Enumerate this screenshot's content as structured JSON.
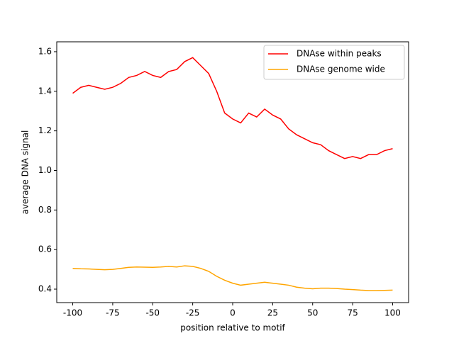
{
  "chart_data": {
    "type": "line",
    "xlabel": "position relative to motif",
    "ylabel": "average DNA signal",
    "x": [
      -100,
      -95,
      -90,
      -85,
      -80,
      -75,
      -70,
      -65,
      -60,
      -55,
      -50,
      -45,
      -40,
      -35,
      -30,
      -25,
      -20,
      -15,
      -10,
      -5,
      0,
      5,
      10,
      15,
      20,
      25,
      30,
      35,
      40,
      45,
      50,
      55,
      60,
      65,
      70,
      75,
      80,
      85,
      90,
      95,
      100
    ],
    "series": [
      {
        "name": "DNAse within peaks",
        "color": "#ff0000",
        "values": [
          1.39,
          1.42,
          1.43,
          1.42,
          1.41,
          1.42,
          1.44,
          1.47,
          1.48,
          1.5,
          1.48,
          1.47,
          1.5,
          1.51,
          1.55,
          1.57,
          1.53,
          1.49,
          1.4,
          1.29,
          1.26,
          1.24,
          1.29,
          1.27,
          1.31,
          1.28,
          1.26,
          1.21,
          1.18,
          1.16,
          1.14,
          1.13,
          1.1,
          1.08,
          1.06,
          1.07,
          1.06,
          1.08,
          1.08,
          1.1,
          1.11
        ]
      },
      {
        "name": "DNAse genome wide",
        "color": "#ffa500",
        "values": [
          0.505,
          0.503,
          0.502,
          0.5,
          0.498,
          0.5,
          0.505,
          0.51,
          0.512,
          0.511,
          0.51,
          0.512,
          0.515,
          0.512,
          0.518,
          0.515,
          0.505,
          0.49,
          0.465,
          0.445,
          0.43,
          0.42,
          0.425,
          0.43,
          0.435,
          0.43,
          0.425,
          0.42,
          0.41,
          0.405,
          0.402,
          0.405,
          0.405,
          0.403,
          0.4,
          0.398,
          0.395,
          0.393,
          0.393,
          0.394,
          0.395
        ]
      }
    ],
    "xlim": [
      -110,
      110
    ],
    "ylim": [
      0.332,
      1.65
    ],
    "xticks": [
      -100,
      -75,
      -50,
      -25,
      0,
      25,
      50,
      75,
      100
    ],
    "yticks": [
      0.4,
      0.6,
      0.8,
      {
        "value": 1.0,
        "label": "1.0"
      },
      1.2,
      1.4,
      1.6
    ],
    "legend": "upper right"
  }
}
